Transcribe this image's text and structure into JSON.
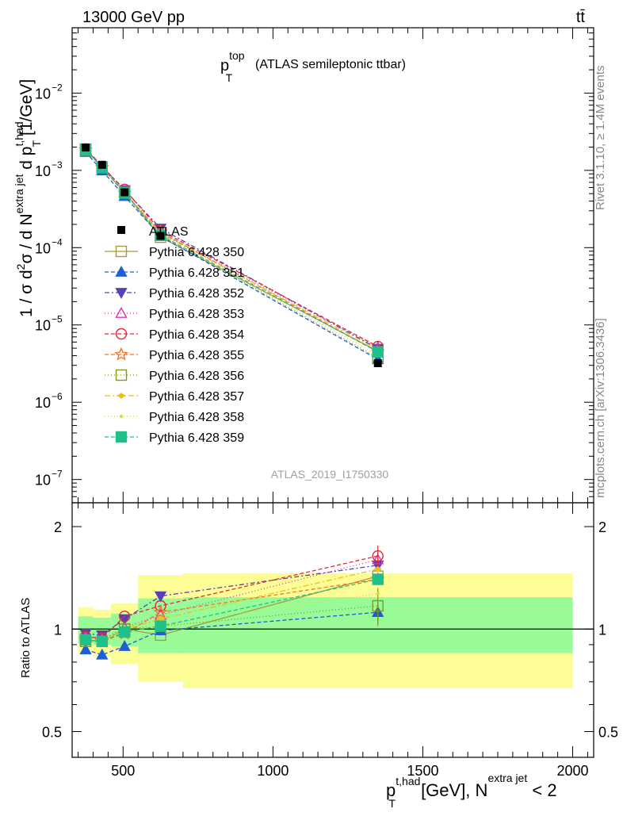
{
  "header": {
    "energy_label": "13000 GeV pp",
    "process_label": "tt̄"
  },
  "side_labels": {
    "rivet": "Rivet 3.1.10, ≥ 1.4M events",
    "mcplots": "mcplots.cern.ch [arXiv:1306.3436]"
  },
  "chart_data": [
    {
      "type": "scatter",
      "title_main": "p",
      "title_sup": "top",
      "title_sub": "T",
      "title_rest": "(ATLAS semileptonic ttbar)",
      "analysis_id": "ATLAS_2019_I1750330",
      "ylabel": "1 / σ d²σ / d N^{extra jet} d p_T^{t,had} [1/GeV]",
      "ylabel_parts": {
        "a": "1 / σ d",
        "b": "2",
        "c": "σ / d N",
        "d": "extra jet",
        "e": " d p",
        "f": "t,had",
        "g": "T",
        "h": " [1/GeV]"
      },
      "yscale": "log",
      "ylim": [
        5e-08,
        0.07
      ],
      "xlim": [
        330,
        2070
      ],
      "y_ticks": [
        {
          "value": 1e-07,
          "base": "10",
          "exp": "−7"
        },
        {
          "value": 1e-06,
          "base": "10",
          "exp": "−6"
        },
        {
          "value": 1e-05,
          "base": "10",
          "exp": "−5"
        },
        {
          "value": 0.0001,
          "base": "10",
          "exp": "−4"
        },
        {
          "value": 0.001,
          "base": "10",
          "exp": "−3"
        },
        {
          "value": 0.01,
          "base": "10",
          "exp": "−2"
        }
      ],
      "x": [
        375,
        430,
        505,
        625,
        1350
      ],
      "data": {
        "name": "ATLAS",
        "values": [
          0.00198,
          0.00118,
          0.00052,
          0.000142,
          3.2e-06
        ]
      },
      "series": [
        {
          "name": "Pythia 6.428 350",
          "color": "#a89b3c",
          "marker": "square-open",
          "dash": "",
          "ratio": [
            0.93,
            0.92,
            1.0,
            0.96,
            1.43
          ]
        },
        {
          "name": "Pythia 6.428 351",
          "color": "#1f5fcf",
          "marker": "triangle-up-filled",
          "dash": "5,3",
          "ratio": [
            0.87,
            0.84,
            0.89,
            0.99,
            1.12
          ]
        },
        {
          "name": "Pythia 6.428 352",
          "color": "#5a3fb8",
          "marker": "triangle-down-filled",
          "dash": "6,3,2,3",
          "ratio": [
            0.97,
            0.96,
            1.07,
            1.25,
            1.54
          ]
        },
        {
          "name": "Pythia 6.428 353",
          "color": "#c83cb0",
          "marker": "triangle-up-open",
          "dash": "1,3",
          "ratio": [
            0.95,
            0.93,
            1.01,
            1.1,
            1.6
          ]
        },
        {
          "name": "Pythia 6.428 354",
          "color": "#e3273a",
          "marker": "circle-open",
          "dash": "5,3",
          "ratio": [
            0.95,
            0.94,
            1.09,
            1.17,
            1.64
          ]
        },
        {
          "name": "Pythia 6.428 355",
          "color": "#f0782a",
          "marker": "star-open",
          "dash": "5,3",
          "ratio": [
            0.93,
            0.92,
            0.97,
            1.12,
            1.4
          ]
        },
        {
          "name": "Pythia 6.428 356",
          "color": "#7f9a1a",
          "marker": "square-open",
          "dash": "1,3",
          "ratio": [
            0.92,
            0.92,
            1.0,
            1.02,
            1.17
          ]
        },
        {
          "name": "Pythia 6.428 357",
          "color": "#e8c21a",
          "marker": "diamond-filled",
          "dash": "7,3,2,3",
          "ratio": [
            0.93,
            0.92,
            1.0,
            1.07,
            1.5
          ]
        },
        {
          "name": "Pythia 6.428 358",
          "color": "#cddc39",
          "marker": "dot",
          "dash": "1,3",
          "ratio": [
            0.92,
            0.91,
            0.98,
            1.03,
            1.27
          ]
        },
        {
          "name": "Pythia 6.428 359",
          "color": "#20c08a",
          "marker": "square-filled",
          "dash": "5,3",
          "ratio": [
            0.93,
            0.92,
            0.98,
            1.02,
            1.4
          ]
        }
      ]
    },
    {
      "type": "scatter",
      "ylabel": "Ratio to ATLAS",
      "yscale": "log",
      "ylim": [
        0.42,
        2.35
      ],
      "y_ticks": [
        0.5,
        1,
        2
      ],
      "y_ticklabels": [
        "0.5",
        "1",
        "2"
      ],
      "xlabel_parts": {
        "a": "p",
        "b": "t,had",
        "c": "T",
        "d": " [GeV], N",
        "e": "extra jet",
        "f": " < 2"
      },
      "x_ticks": [
        500,
        1000,
        1500,
        2000
      ],
      "x_ticklabels": [
        "500",
        "1000",
        "1500",
        "2000"
      ],
      "reference": 1,
      "bands": [
        {
          "x0": 350,
          "x1": 400,
          "green": [
            0.91,
            1.09
          ],
          "yellow": [
            0.85,
            1.16
          ]
        },
        {
          "x0": 400,
          "x1": 460,
          "green": [
            0.9,
            1.08
          ],
          "yellow": [
            0.83,
            1.14
          ]
        },
        {
          "x0": 460,
          "x1": 550,
          "green": [
            0.89,
            1.11
          ],
          "yellow": [
            0.79,
            1.19
          ]
        },
        {
          "x0": 550,
          "x1": 700,
          "green": [
            0.85,
            1.23
          ],
          "yellow": [
            0.7,
            1.44
          ]
        },
        {
          "x0": 700,
          "x1": 2000,
          "green": [
            0.85,
            1.24
          ],
          "yellow": [
            0.67,
            1.46
          ]
        }
      ],
      "error_bars": {
        "x_index": 4,
        "series": [
          1,
          3,
          4,
          6
        ],
        "half_width": [
          0.08,
          0.1,
          0.12,
          0.15
        ]
      }
    }
  ]
}
